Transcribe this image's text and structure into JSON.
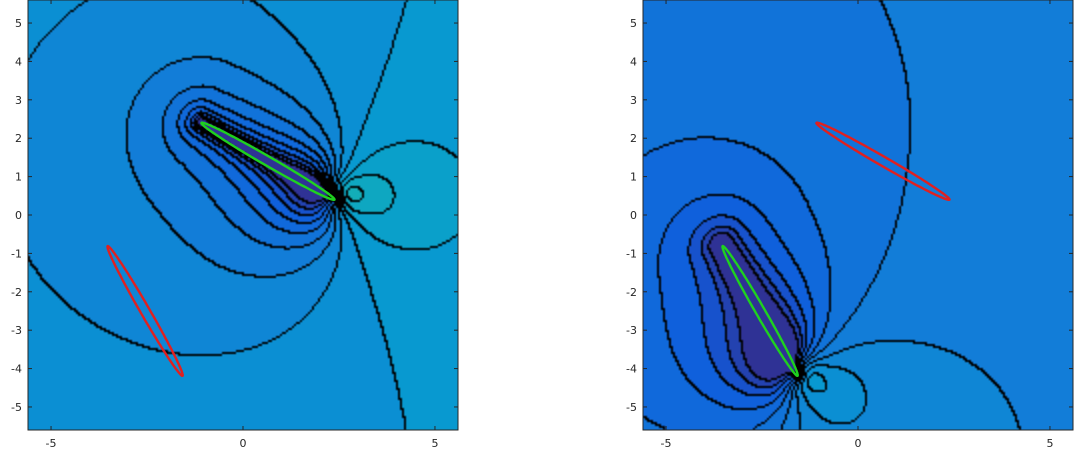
{
  "chart_data": [
    {
      "type": "contour",
      "title": "",
      "xlabel": "",
      "ylabel": "",
      "xlim": [
        -5.6,
        5.6
      ],
      "ylim": [
        -5.6,
        5.6
      ],
      "x_ticks": [
        -5,
        0,
        5
      ],
      "y_ticks": [
        5,
        4,
        3,
        2,
        1,
        0,
        -1,
        -2,
        -3,
        -4,
        -5
      ],
      "colormap": "parula",
      "contour_line_color": "#000000",
      "grid": false,
      "ellipses": [
        {
          "role": "source",
          "color": "#1fd11f",
          "center": [
            0.65,
            1.4
          ],
          "angle_deg": -30,
          "semi_axes": [
            2.0,
            0.12
          ]
        },
        {
          "role": "target",
          "color": "#e02020",
          "center": [
            -2.55,
            -2.5
          ],
          "angle_deg": -60,
          "semi_axes": [
            1.95,
            0.12
          ]
        }
      ],
      "singular_point": [
        2.4,
        0.5
      ],
      "background_level": 0.35
    },
    {
      "type": "contour",
      "title": "",
      "xlabel": "",
      "ylabel": "",
      "xlim": [
        -5.6,
        5.6
      ],
      "ylim": [
        -5.6,
        5.6
      ],
      "x_ticks": [
        -5,
        0,
        5
      ],
      "y_ticks": [
        5,
        4,
        3,
        2,
        1,
        0,
        -1,
        -2,
        -3,
        -4,
        -5
      ],
      "colormap": "parula",
      "contour_line_color": "#000000",
      "grid": false,
      "ellipses": [
        {
          "role": "target",
          "color": "#e02020",
          "center": [
            0.65,
            1.4
          ],
          "angle_deg": -30,
          "semi_axes": [
            2.0,
            0.12
          ]
        },
        {
          "role": "source",
          "color": "#1fd11f",
          "center": [
            -2.55,
            -2.5
          ],
          "angle_deg": -60,
          "semi_axes": [
            1.95,
            0.12
          ]
        }
      ],
      "singular_point": [
        -1.6,
        -4.1
      ],
      "background_level": 0.25
    }
  ]
}
